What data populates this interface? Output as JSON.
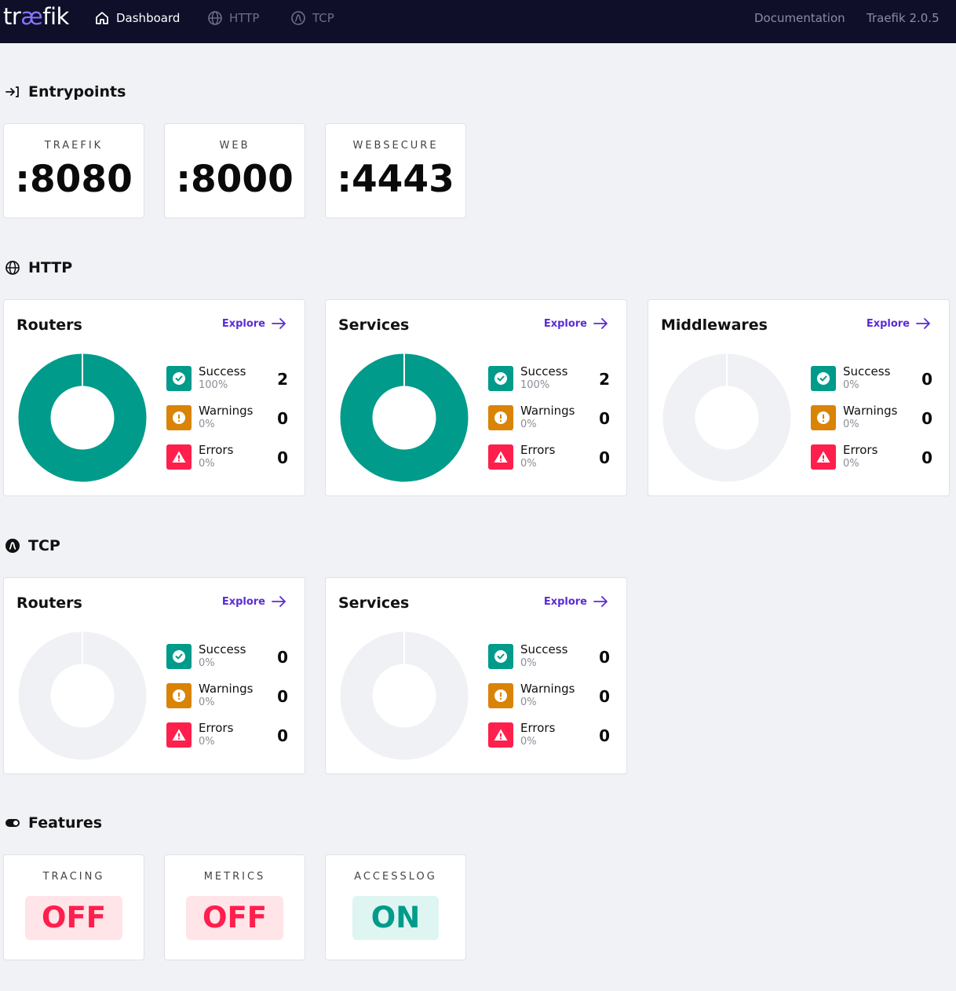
{
  "header": {
    "logo_prefix": "tr",
    "logo_ae": "æ",
    "logo_suffix": "fik",
    "nav": [
      {
        "label": "Dashboard",
        "icon": "home-icon",
        "active": true
      },
      {
        "label": "HTTP",
        "icon": "globe-icon",
        "active": false
      },
      {
        "label": "TCP",
        "icon": "tcp-icon",
        "active": false
      }
    ],
    "documentation": "Documentation",
    "version": "Traefik 2.0.5"
  },
  "entrypoints": {
    "title": "Entrypoints",
    "items": [
      {
        "name": "TRAEFIK",
        "port": ":8080"
      },
      {
        "name": "WEB",
        "port": ":8000"
      },
      {
        "name": "WEBSECURE",
        "port": ":4443"
      }
    ]
  },
  "http": {
    "title": "HTTP",
    "cards": [
      {
        "title": "Routers",
        "explore": "Explore",
        "success": {
          "label": "Success",
          "pct": "100%",
          "count": "2"
        },
        "warnings": {
          "label": "Warnings",
          "pct": "0%",
          "count": "0"
        },
        "errors": {
          "label": "Errors",
          "pct": "0%",
          "count": "0"
        }
      },
      {
        "title": "Services",
        "explore": "Explore",
        "success": {
          "label": "Success",
          "pct": "100%",
          "count": "2"
        },
        "warnings": {
          "label": "Warnings",
          "pct": "0%",
          "count": "0"
        },
        "errors": {
          "label": "Errors",
          "pct": "0%",
          "count": "0"
        }
      },
      {
        "title": "Middlewares",
        "explore": "Explore",
        "success": {
          "label": "Success",
          "pct": "0%",
          "count": "0"
        },
        "warnings": {
          "label": "Warnings",
          "pct": "0%",
          "count": "0"
        },
        "errors": {
          "label": "Errors",
          "pct": "0%",
          "count": "0"
        }
      }
    ]
  },
  "tcp": {
    "title": "TCP",
    "cards": [
      {
        "title": "Routers",
        "explore": "Explore",
        "success": {
          "label": "Success",
          "pct": "0%",
          "count": "0"
        },
        "warnings": {
          "label": "Warnings",
          "pct": "0%",
          "count": "0"
        },
        "errors": {
          "label": "Errors",
          "pct": "0%",
          "count": "0"
        }
      },
      {
        "title": "Services",
        "explore": "Explore",
        "success": {
          "label": "Success",
          "pct": "0%",
          "count": "0"
        },
        "warnings": {
          "label": "Warnings",
          "pct": "0%",
          "count": "0"
        },
        "errors": {
          "label": "Errors",
          "pct": "0%",
          "count": "0"
        }
      }
    ]
  },
  "features": {
    "title": "Features",
    "items": [
      {
        "name": "TRACING",
        "state": "OFF"
      },
      {
        "name": "METRICS",
        "state": "OFF"
      },
      {
        "name": "ACCESSLOG",
        "state": "ON"
      }
    ]
  },
  "colors": {
    "success": "#009b8a",
    "warning": "#d98307",
    "error": "#ff1f4c",
    "empty": "#f0f1f5",
    "accent": "#5b2bd6",
    "header_bg": "#0f0f2a"
  }
}
